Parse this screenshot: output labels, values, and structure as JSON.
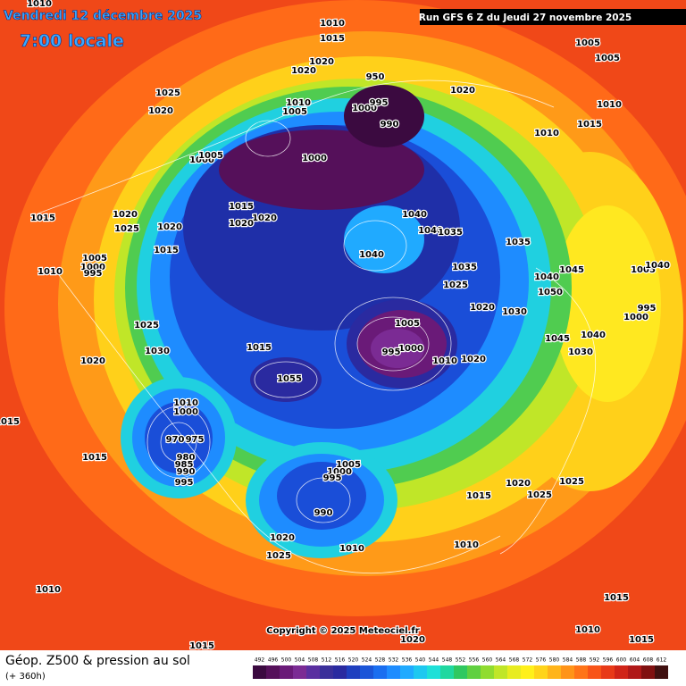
{
  "header": {
    "date": "Vendredi 12 décembre 2025",
    "time": "7:00 locale",
    "run": "Run GFS 6 Z du Jeudi 27 novembre 2025"
  },
  "footer": {
    "title": "Géop. Z500 & pression au sol",
    "lead_time": "(+ 360h)",
    "copyright": "Copyright © 2025 Meteociel.fr"
  },
  "scale": {
    "values": [
      492,
      496,
      500,
      504,
      508,
      512,
      516,
      520,
      524,
      528,
      532,
      536,
      540,
      544,
      548,
      552,
      556,
      560,
      564,
      568,
      572,
      576,
      580,
      584,
      588,
      592,
      596,
      600,
      604,
      608,
      612
    ],
    "colors": [
      "#3b0a40",
      "#55105a",
      "#6a1a78",
      "#7b2b94",
      "#5a2fa0",
      "#3a2f9a",
      "#2a2aa0",
      "#1f3fbf",
      "#1b55d8",
      "#1a6ef0",
      "#1e8cff",
      "#20aaff",
      "#1ec8f0",
      "#1ee0d8",
      "#20d8a0",
      "#30c860",
      "#60d040",
      "#90dc30",
      "#c0e628",
      "#e8ec20",
      "#fff01a",
      "#ffd41a",
      "#ffb41a",
      "#ff9418",
      "#ff7418",
      "#f85418",
      "#e83a18",
      "#d02418",
      "#b01818",
      "#801010",
      "#401010"
    ]
  },
  "isobar_labels": [
    1010,
    1010,
    1015,
    1005,
    1005,
    1020,
    1020,
    1025,
    1020,
    1020,
    1010,
    1015,
    1010,
    1010,
    1005,
    1000,
    995,
    990,
    950,
    1000,
    1000,
    1005,
    1015,
    1020,
    1025,
    1020,
    1015,
    1020,
    1020,
    1040,
    1040,
    1035,
    1040,
    1035,
    1035,
    1025,
    1015,
    1005,
    1000,
    995,
    1010,
    1040,
    1045,
    1050,
    1005,
    1040,
    1020,
    1030,
    995,
    1000,
    1025,
    1005,
    1000,
    995,
    1030,
    1015,
    1045,
    1040,
    1030,
    1010,
    1020,
    1020,
    1055,
    1015,
    1010,
    1000,
    970,
    975,
    980,
    985,
    990,
    995,
    1015,
    1005,
    1000,
    995,
    990,
    1015,
    1020,
    1025,
    1025,
    1020,
    1025,
    1010,
    1010,
    1010,
    1015,
    1010,
    1015,
    1015,
    1020
  ]
}
